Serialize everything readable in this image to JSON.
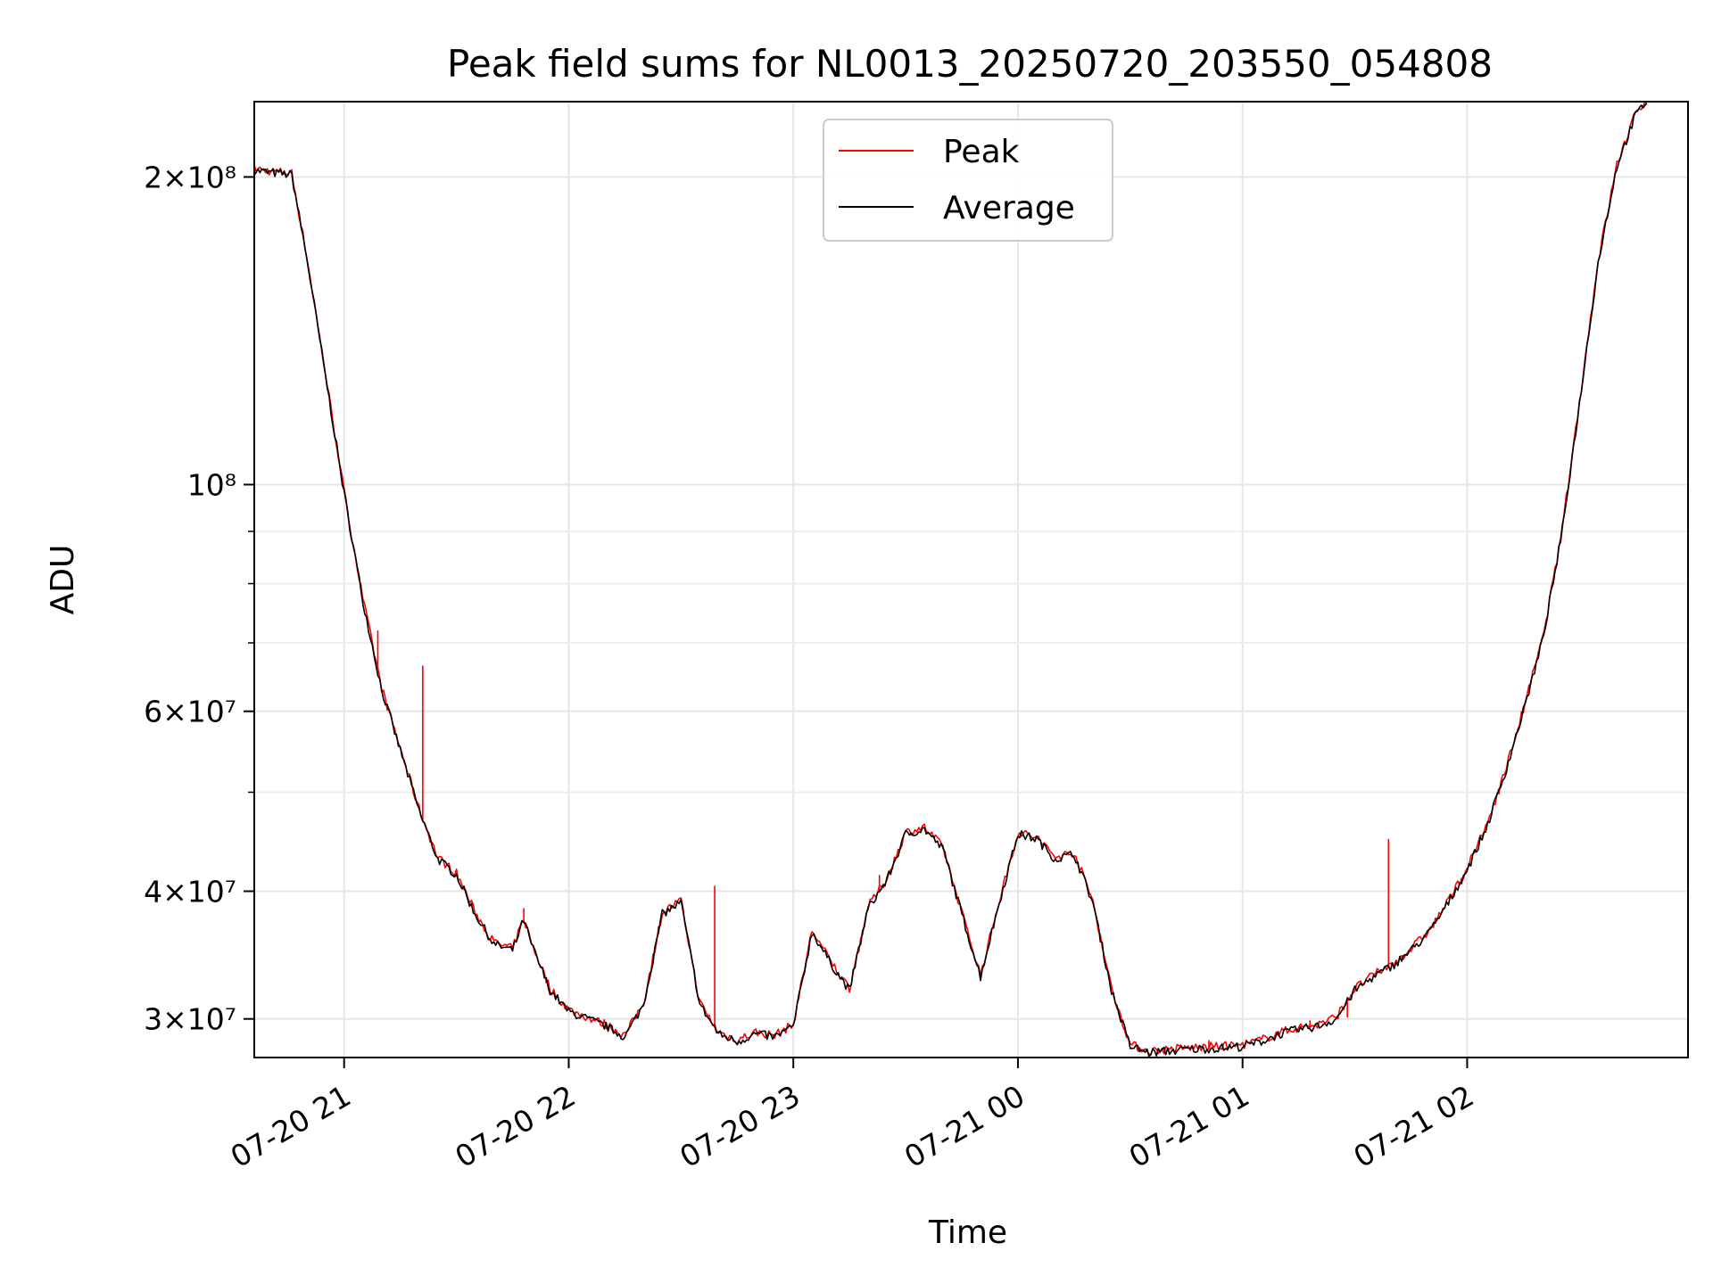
{
  "chart_data": {
    "type": "line",
    "title": "Peak field sums for NL0013_20250720_203550_054808",
    "xlabel": "Time",
    "ylabel": "ADU",
    "yscale": "log",
    "grid": true,
    "legend_position": "top-center",
    "xlim": [
      "2025-07-20 20:36",
      "2025-07-21 02:59"
    ],
    "ylim": [
      27500000,
      237000000
    ],
    "x_ticks": [
      "07-20 21",
      "07-20 22",
      "07-20 23",
      "07-21 00",
      "07-21 01",
      "07-21 02"
    ],
    "y_ticks": [
      {
        "value": 200000000,
        "label": "2×10⁸"
      },
      {
        "value": 100000000,
        "label": "10⁸"
      },
      {
        "value": 60000000,
        "label": "6×10⁷"
      },
      {
        "value": 40000000,
        "label": "4×10⁷"
      },
      {
        "value": 30000000,
        "label": "3×10⁷"
      }
    ],
    "series": [
      {
        "name": "Peak",
        "color": "#ff0000",
        "spikes": [
          {
            "t": "2025-07-20 21:09",
            "value": 72000000
          },
          {
            "t": "2025-07-20 21:21",
            "value": 66500000
          },
          {
            "t": "2025-07-20 21:48",
            "value": 38500000
          },
          {
            "t": "2025-07-20 22:39",
            "value": 40500000
          },
          {
            "t": "2025-07-20 23:23",
            "value": 41500000
          },
          {
            "t": "2025-07-21 00:51",
            "value": 28600000
          },
          {
            "t": "2025-07-21 01:18",
            "value": 29900000
          },
          {
            "t": "2025-07-21 01:28",
            "value": 30100000
          },
          {
            "t": "2025-07-21 01:39",
            "value": 45000000
          }
        ]
      },
      {
        "name": "Average",
        "color": "#000000",
        "x": [
          "2025-07-20 20:36",
          "2025-07-20 20:40",
          "2025-07-20 20:46",
          "2025-07-20 20:50",
          "2025-07-20 20:55",
          "2025-07-20 21:00",
          "2025-07-20 21:05",
          "2025-07-20 21:10",
          "2025-07-20 21:15",
          "2025-07-20 21:20",
          "2025-07-20 21:25",
          "2025-07-20 21:30",
          "2025-07-20 21:35",
          "2025-07-20 21:40",
          "2025-07-20 21:45",
          "2025-07-20 21:48",
          "2025-07-20 21:50",
          "2025-07-20 21:55",
          "2025-07-20 22:00",
          "2025-07-20 22:10",
          "2025-07-20 22:15",
          "2025-07-20 22:20",
          "2025-07-20 22:25",
          "2025-07-20 22:30",
          "2025-07-20 22:35",
          "2025-07-20 22:40",
          "2025-07-20 22:45",
          "2025-07-20 22:50",
          "2025-07-20 22:55",
          "2025-07-20 23:00",
          "2025-07-20 23:05",
          "2025-07-20 23:10",
          "2025-07-20 23:15",
          "2025-07-20 23:20",
          "2025-07-20 23:25",
          "2025-07-20 23:30",
          "2025-07-20 23:35",
          "2025-07-20 23:40",
          "2025-07-20 23:45",
          "2025-07-20 23:50",
          "2025-07-20 23:55",
          "2025-07-21 00:00",
          "2025-07-21 00:05",
          "2025-07-21 00:10",
          "2025-07-21 00:15",
          "2025-07-21 00:20",
          "2025-07-21 00:25",
          "2025-07-21 00:30",
          "2025-07-21 00:35",
          "2025-07-21 00:45",
          "2025-07-21 00:55",
          "2025-07-21 01:00",
          "2025-07-21 01:05",
          "2025-07-21 01:10",
          "2025-07-21 01:15",
          "2025-07-21 01:20",
          "2025-07-21 01:25",
          "2025-07-21 01:30",
          "2025-07-21 01:35",
          "2025-07-21 01:40",
          "2025-07-21 01:45",
          "2025-07-21 01:50",
          "2025-07-21 01:55",
          "2025-07-21 02:00",
          "2025-07-21 02:05",
          "2025-07-21 02:10",
          "2025-07-21 02:15",
          "2025-07-21 02:20",
          "2025-07-21 02:25",
          "2025-07-21 02:30",
          "2025-07-21 02:35",
          "2025-07-21 02:40",
          "2025-07-21 02:45",
          "2025-07-21 02:48"
        ],
        "values": [
          203000000,
          202000000,
          201000000,
          167000000,
          128000000,
          98000000,
          77000000,
          63000000,
          55000000,
          48000000,
          43000000,
          41500000,
          38000000,
          35500000,
          35000000,
          37500000,
          35500000,
          32000000,
          30500000,
          29500000,
          28800000,
          31000000,
          38000000,
          39000000,
          31000000,
          29000000,
          28500000,
          29000000,
          28800000,
          29500000,
          36500000,
          34000000,
          32000000,
          38500000,
          41000000,
          45500000,
          46000000,
          44000000,
          38000000,
          33000000,
          39000000,
          45500000,
          45000000,
          43000000,
          43500000,
          39000000,
          32000000,
          28200000,
          27800000,
          28000000,
          28100000,
          28200000,
          28500000,
          29000000,
          29300000,
          29500000,
          30000000,
          32000000,
          33000000,
          33800000,
          35000000,
          36500000,
          39000000,
          42000000,
          46000000,
          52000000,
          60000000,
          70000000,
          88000000,
          120000000,
          165000000,
          205000000,
          230000000,
          237000000
        ]
      }
    ]
  }
}
